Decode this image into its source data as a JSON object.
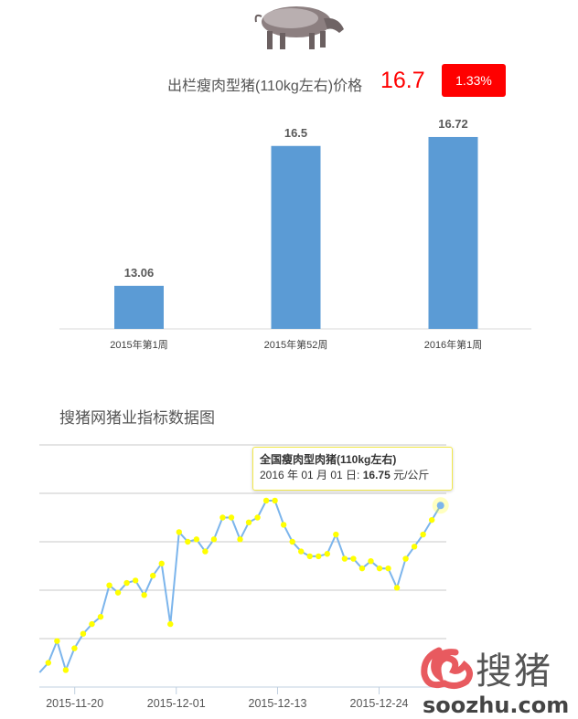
{
  "header": {
    "title": "出栏瘦肉型猪(110kg左右)价格",
    "price": "16.7",
    "change": "1.33%",
    "pig_image": "pig-icon"
  },
  "colors": {
    "bar": "#5b9bd5",
    "line": "#7cb5ec",
    "marker": "#ffff00",
    "accent_red": "#ff0000"
  },
  "chart_data": [
    {
      "type": "bar",
      "categories": [
        "2015年第1周",
        "2015年第52周",
        "2016年第1周"
      ],
      "values": [
        13.06,
        16.5,
        16.72
      ],
      "labels": [
        "13.06",
        "16.5",
        "16.72"
      ],
      "ylim": [
        12,
        17
      ],
      "grid": false
    },
    {
      "type": "line",
      "title": "搜猪网猪业指标数据图",
      "x_tick_labels": [
        "2015-11-20",
        "2015-12-01",
        "2015-12-13",
        "2015-12-24"
      ],
      "series": [
        {
          "name": "全国瘦肉型肉猪(110kg左右)",
          "values": [
            16.06,
            16.1,
            16.19,
            16.07,
            16.16,
            16.22,
            16.26,
            16.29,
            16.42,
            16.39,
            16.43,
            16.44,
            16.38,
            16.46,
            16.51,
            16.26,
            16.64,
            16.6,
            16.61,
            16.56,
            16.61,
            16.7,
            16.7,
            16.61,
            16.68,
            16.7,
            16.77,
            16.77,
            16.67,
            16.6,
            16.56,
            16.54,
            16.54,
            16.55,
            16.63,
            16.53,
            16.53,
            16.49,
            16.52,
            16.49,
            16.49,
            16.41,
            16.53,
            16.58,
            16.63,
            16.69,
            16.75
          ]
        }
      ],
      "ylim": [
        16.0,
        17.0
      ],
      "grid": true,
      "tooltip": {
        "series_name": "全国瘦肉型肉猪(110kg左右)",
        "date": "2016 年 01 月 01 日: ",
        "value": "16.75",
        "unit": " 元/公斤"
      }
    }
  ],
  "watermark": {
    "brand": "搜猪",
    "domain": "soozhu.com"
  }
}
